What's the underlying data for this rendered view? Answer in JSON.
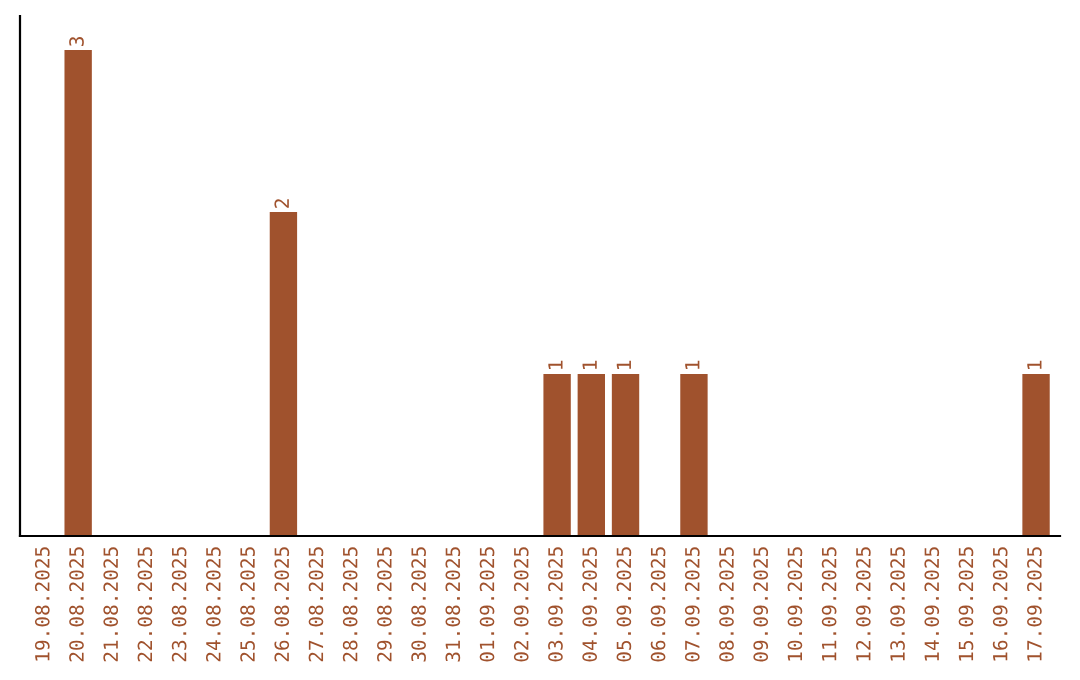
{
  "chart_data": {
    "type": "bar",
    "categories": [
      "19.08.2025",
      "20.08.2025",
      "21.08.2025",
      "22.08.2025",
      "23.08.2025",
      "24.08.2025",
      "25.08.2025",
      "26.08.2025",
      "27.08.2025",
      "28.08.2025",
      "29.08.2025",
      "30.08.2025",
      "31.08.2025",
      "01.09.2025",
      "02.09.2025",
      "03.09.2025",
      "04.09.2025",
      "05.09.2025",
      "06.09.2025",
      "07.09.2025",
      "08.09.2025",
      "09.09.2025",
      "10.09.2025",
      "11.09.2025",
      "12.09.2025",
      "13.09.2025",
      "14.09.2025",
      "15.09.2025",
      "16.09.2025",
      "17.09.2025"
    ],
    "values": [
      0,
      3,
      0,
      0,
      0,
      0,
      0,
      2,
      0,
      0,
      0,
      0,
      0,
      0,
      0,
      1,
      1,
      1,
      0,
      1,
      0,
      0,
      0,
      0,
      0,
      0,
      0,
      0,
      0,
      1
    ],
    "value_labels": [
      null,
      "3",
      null,
      null,
      null,
      null,
      null,
      "2",
      null,
      null,
      null,
      null,
      null,
      null,
      null,
      "1",
      "1",
      "1",
      null,
      "1",
      null,
      null,
      null,
      null,
      null,
      null,
      null,
      null,
      null,
      "1"
    ],
    "color": "#a0522d",
    "grid": false,
    "legend": false,
    "tick_labels": "x"
  }
}
